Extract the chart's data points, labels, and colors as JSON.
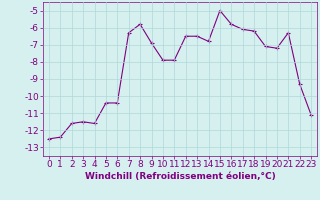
{
  "x": [
    0,
    1,
    2,
    3,
    4,
    5,
    6,
    7,
    8,
    9,
    10,
    11,
    12,
    13,
    14,
    15,
    16,
    17,
    18,
    19,
    20,
    21,
    22,
    23
  ],
  "y": [
    -12.5,
    -12.4,
    -11.6,
    -11.5,
    -11.6,
    -10.4,
    -10.4,
    -6.3,
    -5.8,
    -6.9,
    -7.9,
    -7.9,
    -6.5,
    -6.5,
    -6.8,
    -5.0,
    -5.8,
    -6.1,
    -6.2,
    -7.1,
    -7.2,
    -6.3,
    -9.3,
    -11.1
  ],
  "xlim": [
    -0.5,
    23.5
  ],
  "ylim": [
    -13.5,
    -4.5
  ],
  "yticks": [
    -5,
    -6,
    -7,
    -8,
    -9,
    -10,
    -11,
    -12,
    -13
  ],
  "xticks": [
    0,
    1,
    2,
    3,
    4,
    5,
    6,
    7,
    8,
    9,
    10,
    11,
    12,
    13,
    14,
    15,
    16,
    17,
    18,
    19,
    20,
    21,
    22,
    23
  ],
  "xlabel": "Windchill (Refroidissement éolien,°C)",
  "line_color": "#800080",
  "marker": "+",
  "bg_color": "#d6f0f0",
  "grid_color": "#b0d8d8",
  "tick_color": "#800080",
  "label_color": "#800080",
  "font_size": 6.5,
  "xlabel_fontsize": 6.5
}
